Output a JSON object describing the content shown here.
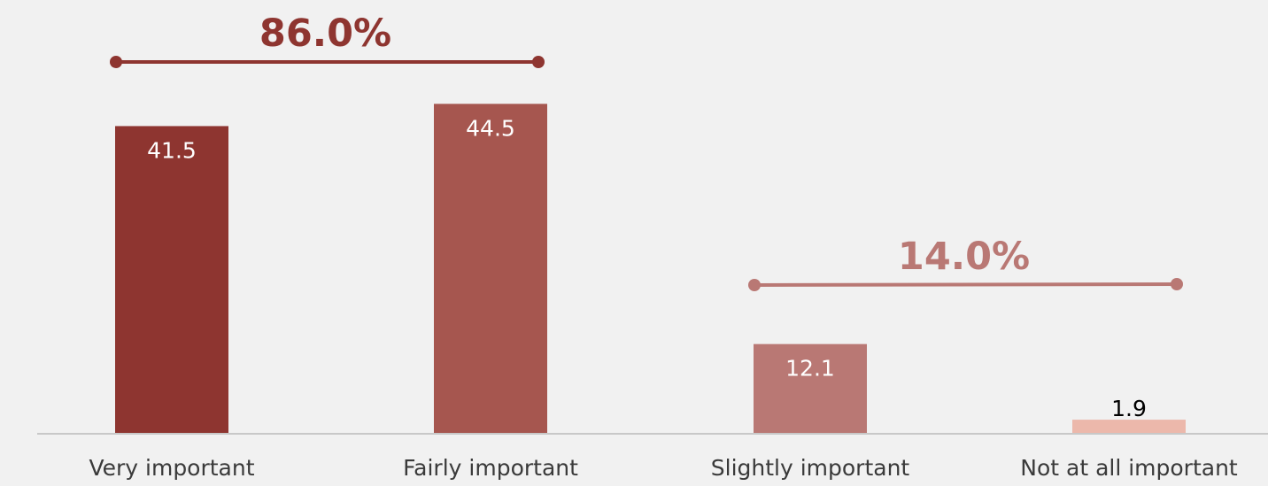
{
  "chart_data": {
    "type": "bar",
    "categories": [
      "Very important",
      "Fairly important",
      "Slightly important",
      "Not at all important"
    ],
    "values": [
      41.5,
      44.5,
      12.1,
      1.9
    ],
    "value_labels": [
      "41.5",
      "44.5",
      "12.1",
      "1.9"
    ],
    "bar_colors": [
      "#8e3530",
      "#a6564f",
      "#b97874",
      "#ecb8ab"
    ],
    "value_label_colors": [
      "#ffffff",
      "#ffffff",
      "#ffffff",
      "#000000"
    ],
    "ylim": [
      0,
      50
    ],
    "grid": false,
    "groups": [
      {
        "label": "86.0%",
        "value": 86.0,
        "from_category": 0,
        "to_category": 1,
        "color": "#8e3530"
      },
      {
        "label": "14.0%",
        "value": 14.0,
        "from_category": 2,
        "to_category": 3,
        "color": "#b97874"
      }
    ],
    "axis_color": "#c8c8c8"
  }
}
